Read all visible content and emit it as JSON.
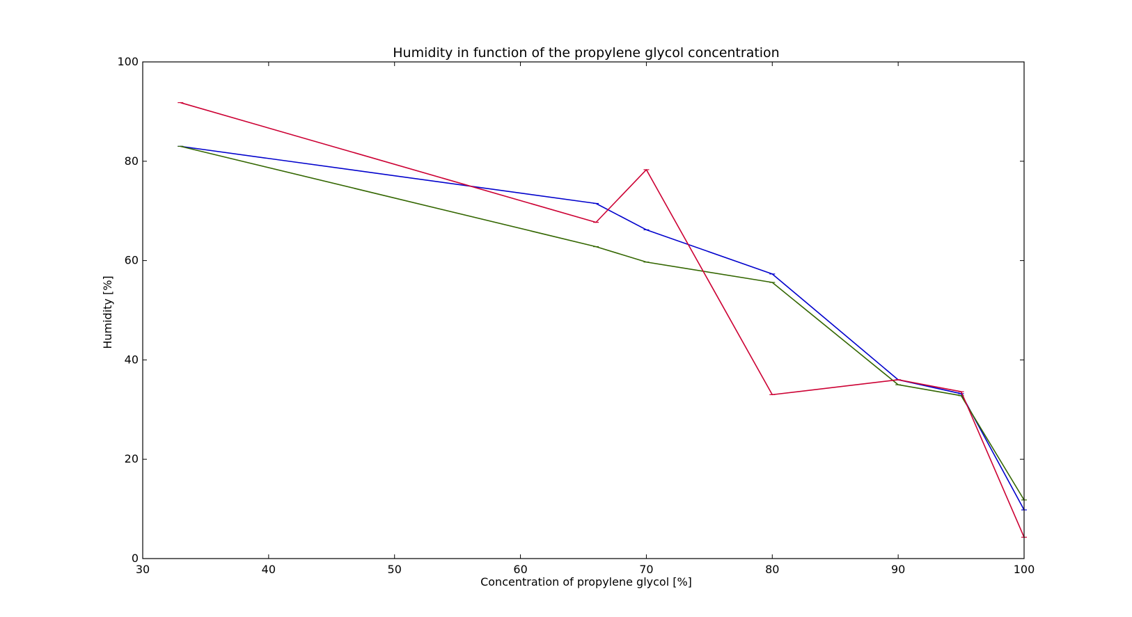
{
  "chart_data": {
    "type": "line",
    "title": "Humidity in function of the propylene glycol concentration",
    "xlabel": "Concentration of propylene glycol [%]",
    "ylabel": "Humidity [%]",
    "xlim": [
      30,
      100
    ],
    "ylim": [
      0,
      100
    ],
    "x_ticks": [
      30,
      40,
      50,
      60,
      70,
      80,
      90,
      100
    ],
    "y_ticks": [
      0,
      20,
      40,
      60,
      80,
      100
    ],
    "x_tick_labels": [
      "30",
      "40",
      "50",
      "60",
      "70",
      "80",
      "90",
      "100"
    ],
    "y_tick_labels": [
      "0",
      "20",
      "40",
      "60",
      "80",
      "100"
    ],
    "grid": false,
    "legend": false,
    "x": [
      33,
      66,
      70,
      80,
      90,
      95,
      100
    ],
    "series": [
      {
        "color": "#0000cc",
        "values": [
          83,
          71.5,
          66.2,
          57.3,
          36.0,
          33.2,
          9.8
        ]
      },
      {
        "color": "#336600",
        "values": [
          83,
          62.8,
          59.7,
          55.6,
          35.0,
          32.8,
          11.8
        ]
      },
      {
        "color": "#cc0033",
        "values": [
          91.8,
          67.7,
          78.3,
          33.0,
          36.0,
          33.6,
          4.3
        ]
      }
    ]
  }
}
